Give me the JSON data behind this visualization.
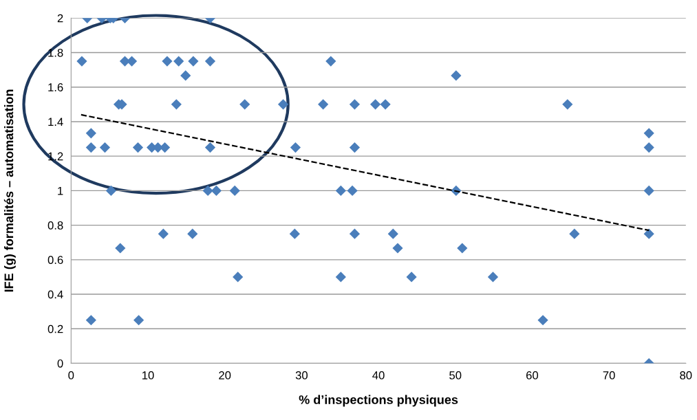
{
  "chart_data": {
    "type": "scatter",
    "xlabel": "% d’inspections physiques",
    "ylabel": "IFE (g) formalités – automatisation",
    "marker": "diamond",
    "grid": "y",
    "legend": false,
    "xlim": [
      0,
      80
    ],
    "xticks": [
      0,
      10,
      20,
      30,
      40,
      50,
      60,
      70,
      80
    ],
    "ylim": [
      0,
      2
    ],
    "yticks": [
      {
        "value": 0,
        "label": "0"
      },
      {
        "value": 0.2,
        "label": "0.2"
      },
      {
        "value": 0.4,
        "label": "0.4"
      },
      {
        "value": 0.6,
        "label": "0.6"
      },
      {
        "value": 0.8,
        "label": "0.8"
      },
      {
        "value": 1,
        "label": "1"
      },
      {
        "value": 1.2,
        "label": "1.2"
      },
      {
        "value": 1.4,
        "label": "1.4"
      },
      {
        "value": 1.6,
        "label": "1.6"
      },
      {
        "value": 1.8,
        "label": "1.8"
      },
      {
        "value": 2,
        "label": "2"
      }
    ],
    "series": [
      {
        "color": "#4a7ebb",
        "x": [
          2.1,
          4.0,
          5.1,
          5.5,
          7.0,
          18.1,
          1.4,
          7.0,
          7.9,
          12.5,
          14.0,
          15.9,
          18.1,
          33.8,
          14.9,
          50.1,
          6.2,
          6.6,
          13.7,
          22.6,
          27.6,
          32.8,
          36.9,
          39.6,
          40.9,
          64.6,
          2.6,
          75.2,
          2.6,
          4.4,
          8.7,
          10.5,
          11.3,
          12.2,
          18.1,
          29.2,
          36.9,
          75.2,
          5.2,
          17.8,
          18.9,
          21.3,
          35.1,
          36.6,
          50.1,
          75.2,
          12.0,
          15.8,
          29.1,
          36.9,
          41.9,
          65.5,
          75.2,
          6.4,
          42.5,
          50.9,
          21.7,
          35.1,
          44.3,
          54.9,
          2.6,
          8.8,
          61.4,
          75.2
        ],
        "values": [
          2,
          2,
          2,
          2,
          2,
          2,
          1.75,
          1.75,
          1.75,
          1.75,
          1.75,
          1.75,
          1.75,
          1.75,
          1.667,
          1.667,
          1.5,
          1.5,
          1.5,
          1.5,
          1.5,
          1.5,
          1.5,
          1.5,
          1.5,
          1.5,
          1.333,
          1.333,
          1.25,
          1.25,
          1.25,
          1.25,
          1.25,
          1.25,
          1.25,
          1.25,
          1.25,
          1.25,
          1,
          1,
          1,
          1,
          1,
          1,
          1,
          1,
          0.75,
          0.75,
          0.75,
          0.75,
          0.75,
          0.75,
          0.75,
          0.667,
          0.667,
          0.667,
          0.5,
          0.5,
          0.5,
          0.5,
          0.25,
          0.25,
          0.25,
          0
        ]
      },
      {
        "type": "line",
        "color": "#000000",
        "line_style": "dashed",
        "marker": "none",
        "x": [
          1.3,
          75.2
        ],
        "values": [
          1.44,
          0.77
        ]
      }
    ]
  }
}
